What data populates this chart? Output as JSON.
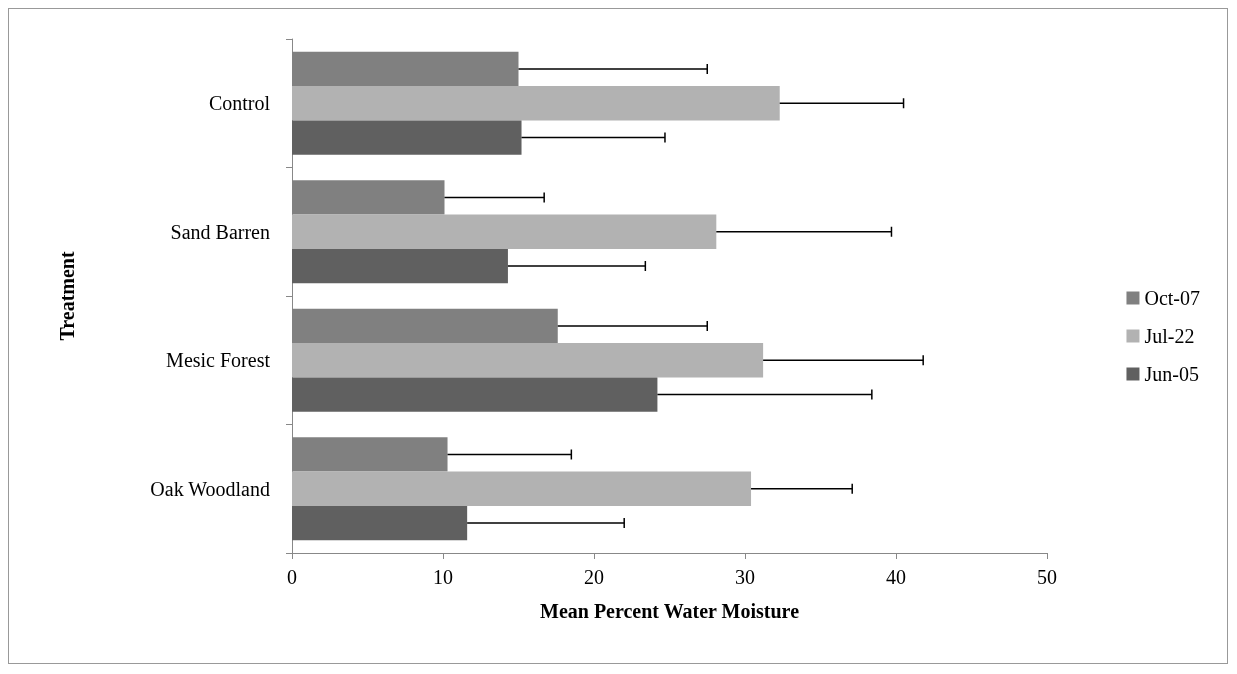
{
  "chart_data": {
    "type": "bar",
    "orientation": "horizontal",
    "xlabel": "Mean Percent Water Moisture",
    "ylabel": "Treatment",
    "categories": [
      "Control",
      "Sand Barren",
      "Mesic Forest",
      "Oak Woodland"
    ],
    "series": [
      {
        "name": "Oct-07",
        "color": "#808080",
        "values": [
          15.0,
          10.1,
          17.6,
          10.3
        ],
        "errors": [
          [
            15.0,
            27.5
          ],
          [
            10.1,
            16.7
          ],
          [
            17.6,
            27.5
          ],
          [
            10.3,
            18.5
          ]
        ]
      },
      {
        "name": "Jul-22",
        "color": "#b2b2b2",
        "values": [
          32.3,
          28.1,
          31.2,
          30.4
        ],
        "errors": [
          [
            32.3,
            40.5
          ],
          [
            28.1,
            39.7
          ],
          [
            31.2,
            41.8
          ],
          [
            30.4,
            37.1
          ]
        ]
      },
      {
        "name": "Jun-05",
        "color": "#606060",
        "values": [
          15.2,
          14.3,
          24.2,
          11.6
        ],
        "errors": [
          [
            15.2,
            24.7
          ],
          [
            14.3,
            23.4
          ],
          [
            24.2,
            38.4
          ],
          [
            11.6,
            22.0
          ]
        ]
      }
    ],
    "xlim": [
      0,
      50
    ],
    "xticks": [
      0,
      10,
      20,
      30,
      40,
      50
    ],
    "grid": false,
    "legend": "right"
  }
}
